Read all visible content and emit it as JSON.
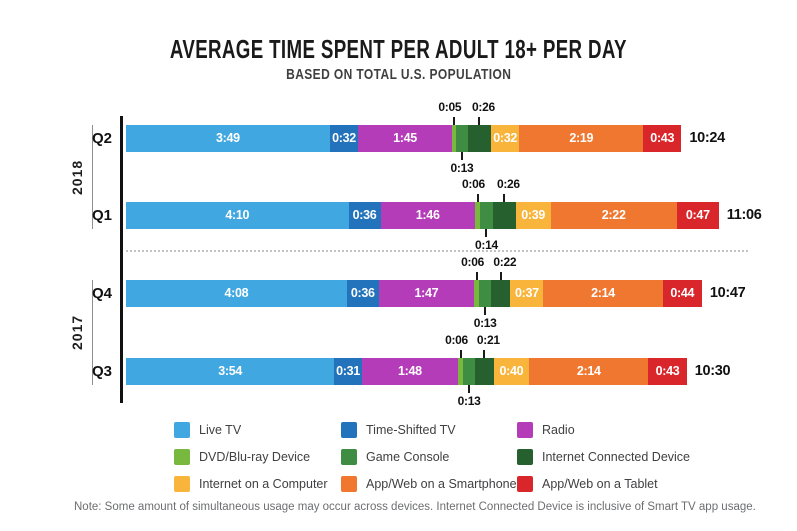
{
  "title": "AVERAGE TIME SPENT PER ADULT 18+ PER DAY",
  "subtitle": "BASED ON TOTAL U.S. POPULATION",
  "note": "Note: Some amount of simultaneous usage may occur across devices. Internet Connected Device is inclusive of Smart TV app usage.",
  "chart_data": {
    "type": "bar",
    "variant": "horizontal-stacked",
    "value_format": "h:mm per day",
    "legend_position": "bottom",
    "grid": false,
    "axis_groups": [
      {
        "year": "2018",
        "quarters": [
          "Q2",
          "Q1"
        ]
      },
      {
        "year": "2017",
        "quarters": [
          "Q4",
          "Q3"
        ]
      }
    ],
    "series": [
      {
        "key": "live_tv",
        "name": "Live TV",
        "color": "#41A7E0",
        "label_placement": "inline"
      },
      {
        "key": "time_shifted_tv",
        "name": "Time-Shifted TV",
        "color": "#2273BC",
        "label_placement": "inline"
      },
      {
        "key": "radio",
        "name": "Radio",
        "color": "#B53CB8",
        "label_placement": "inline"
      },
      {
        "key": "dvd_bluray",
        "name": "DVD/Blu-ray Device",
        "color": "#79B83F",
        "label_placement": "callout-above"
      },
      {
        "key": "game_console",
        "name": "Game Console",
        "color": "#3F8D43",
        "label_placement": "callout-below"
      },
      {
        "key": "internet_connected",
        "name": "Internet Connected Device",
        "color": "#25602E",
        "label_placement": "callout-above"
      },
      {
        "key": "computer",
        "name": "Internet on a Computer",
        "color": "#F9B43B",
        "label_placement": "inline"
      },
      {
        "key": "smartphone",
        "name": "App/Web on a Smartphone",
        "color": "#F0772F",
        "label_placement": "inline"
      },
      {
        "key": "tablet",
        "name": "App/Web on a Tablet",
        "color": "#D9262B",
        "label_placement": "inline"
      }
    ],
    "rows": [
      {
        "quarter": "Q2",
        "year": "2018",
        "total": "10:24",
        "total_minutes": 624,
        "values": [
          {
            "series": "Live TV",
            "label": "3:49",
            "minutes": 229
          },
          {
            "series": "Time-Shifted TV",
            "label": "0:32",
            "minutes": 32
          },
          {
            "series": "Radio",
            "label": "1:45",
            "minutes": 105
          },
          {
            "series": "DVD/Blu-ray Device",
            "label": "0:05",
            "minutes": 5
          },
          {
            "series": "Game Console",
            "label": "0:13",
            "minutes": 13
          },
          {
            "series": "Internet Connected Device",
            "label": "0:26",
            "minutes": 26
          },
          {
            "series": "Internet on a Computer",
            "label": "0:32",
            "minutes": 32
          },
          {
            "series": "App/Web on a Smartphone",
            "label": "2:19",
            "minutes": 139
          },
          {
            "series": "App/Web on a Tablet",
            "label": "0:43",
            "minutes": 43
          }
        ]
      },
      {
        "quarter": "Q1",
        "year": "2018",
        "total": "11:06",
        "total_minutes": 666,
        "values": [
          {
            "series": "Live TV",
            "label": "4:10",
            "minutes": 250
          },
          {
            "series": "Time-Shifted TV",
            "label": "0:36",
            "minutes": 36
          },
          {
            "series": "Radio",
            "label": "1:46",
            "minutes": 106
          },
          {
            "series": "DVD/Blu-ray Device",
            "label": "0:06",
            "minutes": 6
          },
          {
            "series": "Game Console",
            "label": "0:14",
            "minutes": 14
          },
          {
            "series": "Internet Connected Device",
            "label": "0:26",
            "minutes": 26
          },
          {
            "series": "Internet on a Computer",
            "label": "0:39",
            "minutes": 39
          },
          {
            "series": "App/Web on a Smartphone",
            "label": "2:22",
            "minutes": 142
          },
          {
            "series": "App/Web on a Tablet",
            "label": "0:47",
            "minutes": 47
          }
        ]
      },
      {
        "quarter": "Q4",
        "year": "2017",
        "total": "10:47",
        "total_minutes": 647,
        "values": [
          {
            "series": "Live TV",
            "label": "4:08",
            "minutes": 248
          },
          {
            "series": "Time-Shifted TV",
            "label": "0:36",
            "minutes": 36
          },
          {
            "series": "Radio",
            "label": "1:47",
            "minutes": 107
          },
          {
            "series": "DVD/Blu-ray Device",
            "label": "0:06",
            "minutes": 6
          },
          {
            "series": "Game Console",
            "label": "0:13",
            "minutes": 13
          },
          {
            "series": "Internet Connected Device",
            "label": "0:22",
            "minutes": 22
          },
          {
            "series": "Internet on a Computer",
            "label": "0:37",
            "minutes": 37
          },
          {
            "series": "App/Web on a Smartphone",
            "label": "2:14",
            "minutes": 134
          },
          {
            "series": "App/Web on a Tablet",
            "label": "0:44",
            "minutes": 44
          }
        ]
      },
      {
        "quarter": "Q3",
        "year": "2017",
        "total": "10:30",
        "total_minutes": 630,
        "values": [
          {
            "series": "Live TV",
            "label": "3:54",
            "minutes": 234
          },
          {
            "series": "Time-Shifted TV",
            "label": "0:31",
            "minutes": 31
          },
          {
            "series": "Radio",
            "label": "1:48",
            "minutes": 108
          },
          {
            "series": "DVD/Blu-ray Device",
            "label": "0:06",
            "minutes": 6
          },
          {
            "series": "Game Console",
            "label": "0:13",
            "minutes": 13
          },
          {
            "series": "Internet Connected Device",
            "label": "0:21",
            "minutes": 21
          },
          {
            "series": "Internet on a Computer",
            "label": "0:40",
            "minutes": 40
          },
          {
            "series": "App/Web on a Smartphone",
            "label": "2:14",
            "minutes": 134
          },
          {
            "series": "App/Web on a Tablet",
            "label": "0:43",
            "minutes": 43
          }
        ]
      }
    ]
  }
}
